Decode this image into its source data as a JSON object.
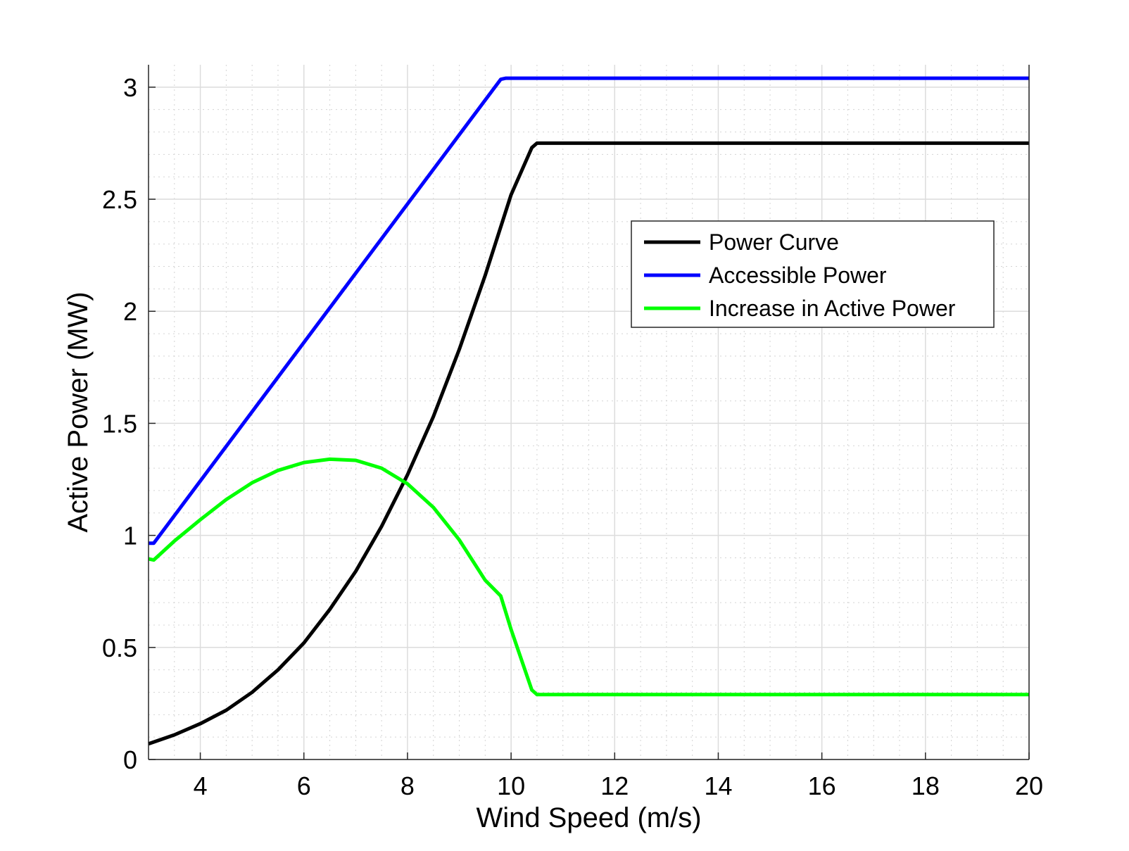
{
  "chart_data": {
    "type": "line",
    "title": "",
    "xlabel": "Wind Speed (m/s)",
    "ylabel": "Active Power (MW)",
    "xlim": [
      3,
      20
    ],
    "ylim": [
      0,
      3.1
    ],
    "xticks": [
      4,
      6,
      8,
      10,
      12,
      14,
      16,
      18,
      20
    ],
    "yticks": [
      0,
      0.5,
      1,
      1.5,
      2,
      2.5,
      3
    ],
    "xtick_labels": [
      "4",
      "6",
      "8",
      "10",
      "12",
      "14",
      "16",
      "18",
      "20"
    ],
    "ytick_labels": [
      "0",
      "0.5",
      "1",
      "1.5",
      "2",
      "2.5",
      "3"
    ],
    "grid": true,
    "minor_grid": true,
    "legend_position": "top-right",
    "series": [
      {
        "name": "Power Curve",
        "color": "#000000",
        "x": [
          3.0,
          3.5,
          4.0,
          4.5,
          5.0,
          5.5,
          6.0,
          6.5,
          7.0,
          7.5,
          8.0,
          8.5,
          9.0,
          9.5,
          10.0,
          10.4,
          10.5,
          11,
          12,
          14,
          16,
          18,
          20
        ],
        "y": [
          0.07,
          0.11,
          0.16,
          0.22,
          0.3,
          0.4,
          0.52,
          0.67,
          0.84,
          1.04,
          1.27,
          1.53,
          1.83,
          2.16,
          2.52,
          2.73,
          2.75,
          2.75,
          2.75,
          2.75,
          2.75,
          2.75,
          2.75
        ]
      },
      {
        "name": "Accessible Power",
        "color": "#0000ff",
        "x": [
          3.0,
          3.1,
          9.8,
          9.9,
          12,
          14,
          16,
          18,
          20
        ],
        "y": [
          0.965,
          0.965,
          3.035,
          3.04,
          3.04,
          3.04,
          3.04,
          3.04,
          3.04
        ]
      },
      {
        "name": "Increase in Active Power",
        "color": "#00ff00",
        "x": [
          3.0,
          3.1,
          3.5,
          4.0,
          4.5,
          5.0,
          5.5,
          6.0,
          6.5,
          7.0,
          7.5,
          8.0,
          8.5,
          9.0,
          9.5,
          9.8,
          10.0,
          10.4,
          10.5,
          12,
          14,
          16,
          18,
          20
        ],
        "y": [
          0.895,
          0.89,
          0.975,
          1.07,
          1.16,
          1.235,
          1.29,
          1.325,
          1.34,
          1.335,
          1.3,
          1.23,
          1.125,
          0.98,
          0.8,
          0.73,
          0.58,
          0.31,
          0.29,
          0.29,
          0.29,
          0.29,
          0.29,
          0.29
        ]
      }
    ]
  }
}
